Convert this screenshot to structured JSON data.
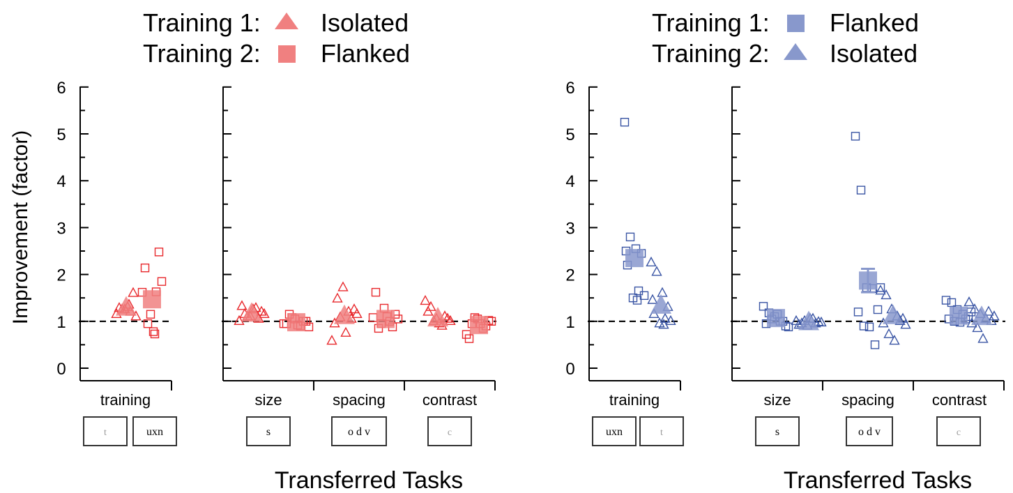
{
  "figure": {
    "ylabel": "Improvement (factor)",
    "xlabel": "Transferred Tasks",
    "yticks": [
      0,
      1,
      2,
      3,
      4,
      5,
      6
    ]
  },
  "panels": [
    {
      "legend": [
        {
          "label": "Training 1:",
          "marker": "triangle",
          "name": "Isolated"
        },
        {
          "label": "Training 2:",
          "marker": "square",
          "name": "Flanked"
        }
      ],
      "colors": {
        "marker": "#f08080",
        "open_marker": "#e8282c"
      },
      "groups": [
        {
          "label": "training",
          "stimuli": [
            "t",
            "uxn"
          ]
        },
        {
          "label": "size",
          "stimuli": [
            "s"
          ]
        },
        {
          "label": "spacing",
          "stimuli": [
            "o d v"
          ]
        },
        {
          "label": "contrast",
          "stimuli": [
            "c"
          ]
        }
      ]
    },
    {
      "legend": [
        {
          "label": "Training 1:",
          "marker": "square",
          "name": "Flanked"
        },
        {
          "label": "Training 2:",
          "marker": "triangle",
          "name": "Isolated"
        }
      ],
      "colors": {
        "marker": "#8898cc",
        "open_marker": "#3a55a4"
      },
      "groups": [
        {
          "label": "training",
          "stimuli": [
            "uxn",
            "t"
          ]
        },
        {
          "label": "size",
          "stimuli": [
            "s"
          ]
        },
        {
          "label": "spacing",
          "stimuli": [
            "o d v"
          ]
        },
        {
          "label": "contrast",
          "stimuli": [
            "c"
          ]
        }
      ]
    }
  ],
  "chart_data": [
    {
      "type": "scatter",
      "ylabel": "Improvement (factor)",
      "xlabel": "Transferred Tasks",
      "ylim": [
        0,
        6
      ],
      "reference_line": 1,
      "categories": [
        "training",
        "size",
        "spacing",
        "contrast"
      ],
      "series": [
        {
          "name": "Isolated",
          "marker": "triangle",
          "means": {
            "training": 1.28,
            "size": 1.15,
            "spacing": 1.1,
            "contrast": 1.05
          },
          "points": {
            "training": [
              1.15,
              1.25,
              1.3,
              1.6,
              1.28,
              1.2,
              1.1,
              1.25,
              1.35
            ],
            "size": [
              1.0,
              1.15,
              1.1,
              1.28,
              1.2,
              1.32,
              1.1,
              1.25,
              1.05,
              1.15
            ],
            "spacing": [
              0.58,
              1.48,
              1.72,
              1.2,
              1.25,
              0.95,
              1.08,
              0.75,
              1.05,
              1.15
            ],
            "contrast": [
              1.43,
              1.3,
              1.05,
              0.9,
              1.05,
              1.2,
              1.0,
              0.95,
              1.1,
              1.0
            ]
          }
        },
        {
          "name": "Flanked",
          "marker": "square",
          "means": {
            "training": 1.47,
            "size": 0.98,
            "spacing": 1.05,
            "contrast": 0.92
          },
          "points": {
            "training": [
              1.62,
              0.95,
              0.78,
              2.48,
              2.14,
              1.63,
              1.85,
              1.15,
              0.73
            ],
            "size": [
              0.95,
              1.15,
              1.05,
              0.9,
              1.0,
              0.95,
              1.08,
              0.92,
              1.0,
              0.88
            ],
            "spacing": [
              1.08,
              0.85,
              1.28,
              1.0,
              1.15,
              1.62,
              0.95,
              1.1,
              0.88,
              1.05
            ],
            "contrast": [
              0.72,
              0.95,
              1.05,
              0.85,
              1.02,
              0.63,
              1.08,
              0.95,
              0.9,
              1.0
            ]
          }
        }
      ]
    },
    {
      "type": "scatter",
      "ylabel": "Improvement (factor)",
      "xlabel": "Transferred Tasks",
      "ylim": [
        0,
        6
      ],
      "reference_line": 1,
      "categories": [
        "training",
        "size",
        "spacing",
        "contrast"
      ],
      "series": [
        {
          "name": "Flanked",
          "marker": "square",
          "means": {
            "training": 2.35,
            "size": 1.07,
            "spacing": 1.87,
            "contrast": 1.12
          },
          "means_error": {
            "spacing": 0.25
          },
          "points": {
            "training": [
              5.25,
              2.8,
              2.55,
              2.45,
              2.2,
              1.65,
              1.55,
              1.5,
              1.45,
              2.5
            ],
            "size": [
              1.32,
              1.18,
              1.1,
              1.0,
              0.9,
              0.95,
              1.05,
              1.15,
              1.0,
              0.88
            ],
            "spacing": [
              4.95,
              3.8,
              1.72,
              1.7,
              1.25,
              1.2,
              0.9,
              0.88,
              0.5,
              1.72
            ],
            "contrast": [
              1.45,
              1.4,
              1.25,
              1.15,
              1.1,
              1.05,
              1.0,
              0.98,
              1.05,
              1.2
            ]
          }
        },
        {
          "name": "Isolated",
          "marker": "triangle",
          "means": {
            "training": 1.32,
            "size": 0.97,
            "spacing": 1.1,
            "contrast": 1.08
          },
          "points": {
            "training": [
              2.25,
              2.05,
              1.6,
              1.3,
              1.15,
              1.05,
              1.0,
              0.95,
              0.92,
              1.45
            ],
            "size": [
              1.0,
              0.95,
              0.9,
              1.05,
              0.98,
              0.92,
              1.0,
              1.05,
              0.95,
              0.97
            ],
            "spacing": [
              1.65,
              1.55,
              1.25,
              1.1,
              1.05,
              0.95,
              0.72,
              0.58,
              1.0,
              0.92
            ],
            "contrast": [
              1.4,
              1.25,
              1.15,
              1.05,
              1.0,
              0.95,
              0.85,
              0.62,
              1.2,
              1.1
            ]
          }
        }
      ]
    }
  ]
}
